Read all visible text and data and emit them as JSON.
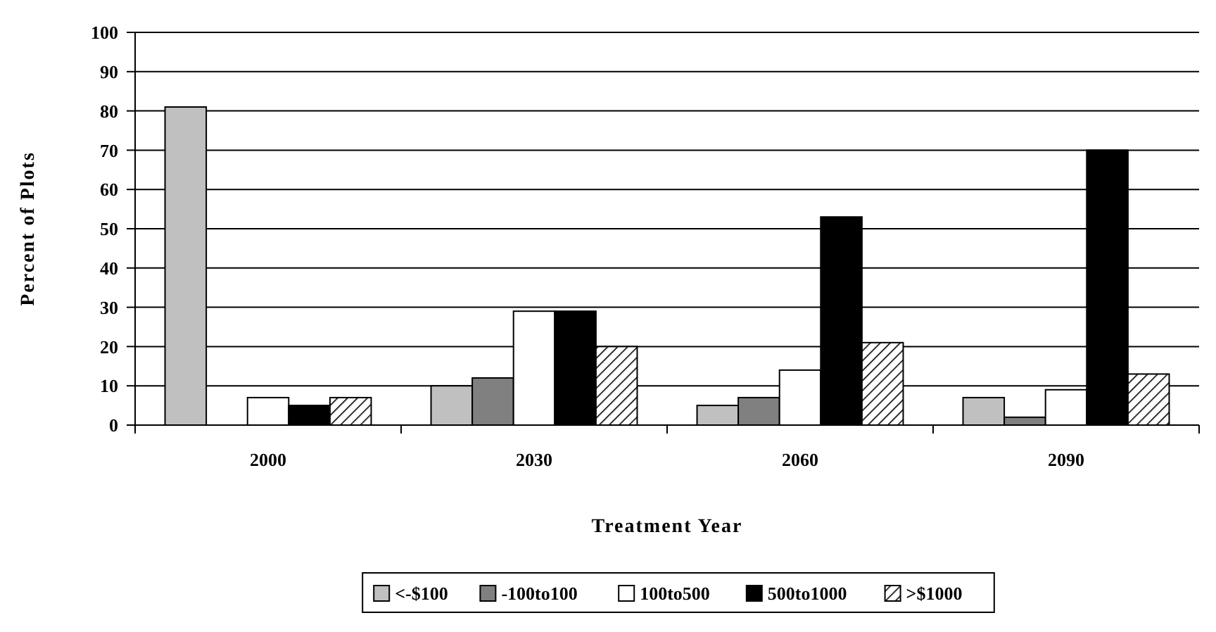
{
  "chart_data": {
    "type": "bar",
    "xlabel": "Treatment Year",
    "ylabel": "Percent of Plots",
    "categories": [
      "2000",
      "2030",
      "2060",
      "2090"
    ],
    "series": [
      {
        "name": "<-$100",
        "color": "#c0c0c0",
        "values": [
          81,
          10,
          5,
          7
        ]
      },
      {
        "name": "-100to100",
        "color": "#808080",
        "values": [
          0,
          12,
          7,
          2
        ]
      },
      {
        "name": "100to500",
        "color": "#ffffff",
        "values": [
          7,
          29,
          14,
          9
        ]
      },
      {
        "name": "500to1000",
        "color": "#000000",
        "values": [
          5,
          29,
          53,
          70
        ]
      },
      {
        "name": ">$1000",
        "color": "#000000",
        "values": [
          7,
          20,
          21,
          13
        ]
      }
    ],
    "ylim": [
      0,
      100
    ],
    "yticks": [
      0,
      10,
      20,
      30,
      40,
      50,
      60,
      70,
      80,
      90,
      100
    ],
    "grid": "y",
    "legend": "bottom"
  }
}
